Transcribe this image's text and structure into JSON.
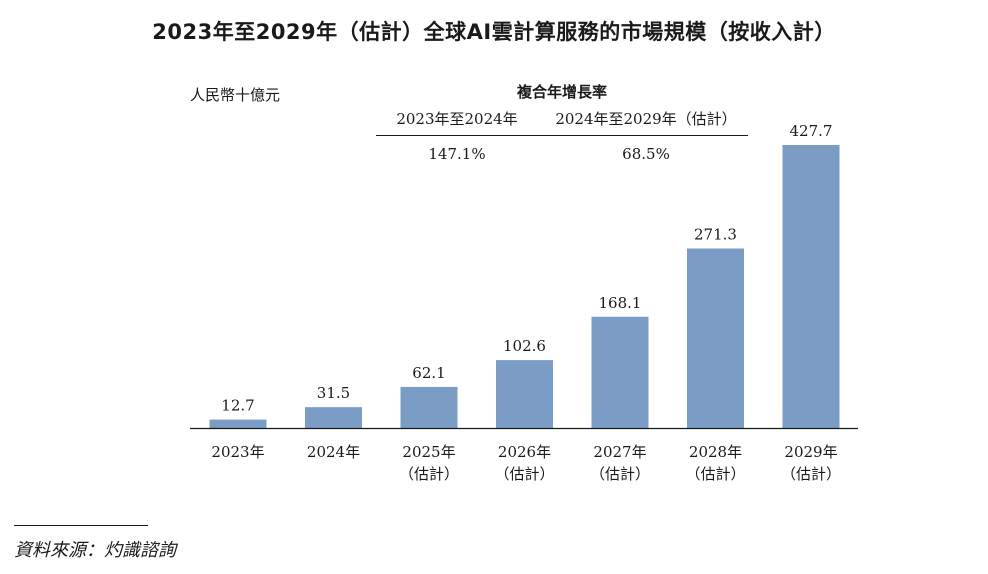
{
  "chart_data": {
    "type": "bar",
    "title": "2023年至2029年（估計）全球AI雲計算服務的市場規模（按收入計）",
    "ylabel": "人民幣十億元",
    "categories": [
      [
        "2023年"
      ],
      [
        "2024年"
      ],
      [
        "2025年",
        "（估計）"
      ],
      [
        "2026年",
        "（估計）"
      ],
      [
        "2027年",
        "（估計）"
      ],
      [
        "2028年",
        "（估計）"
      ],
      [
        "2029年",
        "（估計）"
      ]
    ],
    "values": [
      12.7,
      31.5,
      62.1,
      102.6,
      168.1,
      271.3,
      427.7
    ],
    "value_labels": [
      "12.7",
      "31.5",
      "62.1",
      "102.6",
      "168.1",
      "271.3",
      "427.7"
    ],
    "ylim": [
      0,
      427.7
    ],
    "bar_color": "#7b9cc4",
    "grid": false,
    "legend": "none",
    "cagr": {
      "title": "複合年增長率",
      "columns": [
        {
          "period": "2023年至2024年",
          "rate": "147.1%"
        },
        {
          "period": "2024年至2029年（估計）",
          "rate": "68.5%"
        }
      ]
    },
    "source": "資料來源：灼識諮詢"
  }
}
